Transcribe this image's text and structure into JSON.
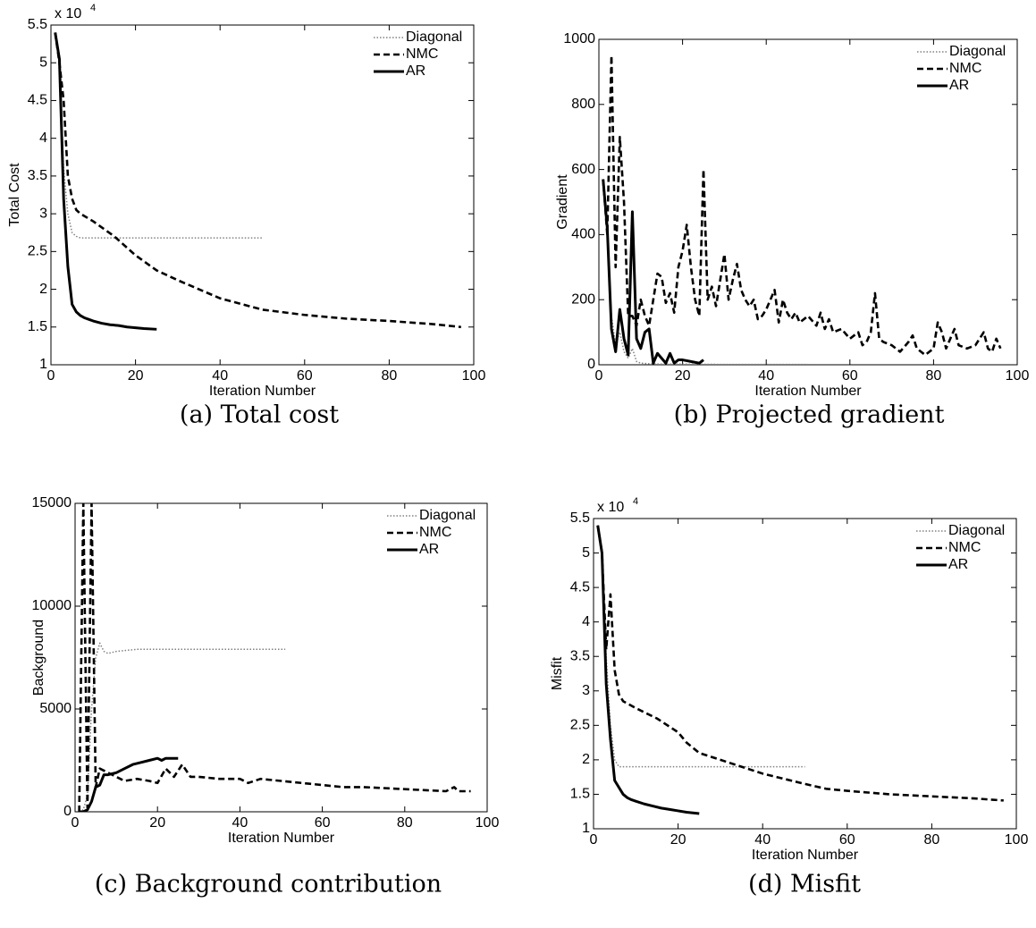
{
  "chart_data": [
    {
      "type": "line",
      "caption": "(a) Total cost",
      "xlabel": "Iteration Number",
      "ylabel": "Total Cost",
      "y_multiplier": "x 10",
      "y_multiplier_exponent": "4",
      "xlim": [
        0,
        100
      ],
      "xticks": [
        0,
        20,
        40,
        60,
        80,
        100
      ],
      "ylim": [
        1,
        5.5
      ],
      "yticks": [
        1,
        1.5,
        2,
        2.5,
        3,
        3.5,
        4,
        4.5,
        5,
        5.5
      ],
      "series": [
        {
          "name": "Diagonal",
          "color": "#808080",
          "style": "dotted",
          "x": [
            1,
            2,
            3,
            4,
            5,
            6,
            7,
            8,
            10,
            50
          ],
          "values": [
            5.4,
            5.0,
            3.6,
            3.0,
            2.75,
            2.7,
            2.68,
            2.68,
            2.68,
            2.68
          ]
        },
        {
          "name": "NMC",
          "color": "#000000",
          "style": "dashed",
          "x": [
            1,
            2,
            3,
            4,
            5,
            6,
            7,
            10,
            15,
            20,
            25,
            30,
            35,
            40,
            50,
            60,
            70,
            80,
            90,
            97
          ],
          "values": [
            5.4,
            5.0,
            4.5,
            3.5,
            3.2,
            3.05,
            3.0,
            2.9,
            2.7,
            2.45,
            2.25,
            2.12,
            2.0,
            1.88,
            1.73,
            1.66,
            1.61,
            1.58,
            1.54,
            1.5
          ]
        },
        {
          "name": "AR",
          "color": "#000000",
          "style": "solid",
          "x": [
            1,
            2,
            3,
            4,
            5,
            6,
            7,
            8,
            9,
            10,
            12,
            14,
            16,
            18,
            20,
            22,
            25
          ],
          "values": [
            5.4,
            5.05,
            3.2,
            2.3,
            1.8,
            1.7,
            1.65,
            1.62,
            1.6,
            1.58,
            1.55,
            1.53,
            1.52,
            1.5,
            1.49,
            1.48,
            1.47
          ]
        }
      ]
    },
    {
      "type": "line",
      "caption": "(b) Projected gradient",
      "xlabel": "Iteration Number",
      "ylabel": "Gradient",
      "xlim": [
        0,
        100
      ],
      "xticks": [
        0,
        20,
        40,
        60,
        80,
        100
      ],
      "ylim": [
        0,
        1000
      ],
      "yticks": [
        0,
        200,
        400,
        600,
        800,
        1000
      ],
      "series": [
        {
          "name": "Diagonal",
          "color": "#808080",
          "style": "dotted",
          "x": [
            1,
            2,
            3,
            4,
            5,
            6,
            7,
            8,
            9,
            10,
            12,
            15,
            20,
            30,
            50
          ],
          "values": [
            570,
            430,
            150,
            60,
            100,
            40,
            20,
            50,
            10,
            5,
            3,
            2,
            2,
            1,
            1
          ]
        },
        {
          "name": "NMC",
          "color": "#000000",
          "style": "dashed",
          "x": [
            1,
            2,
            3,
            4,
            5,
            6,
            7,
            8,
            9,
            10,
            11,
            12,
            13,
            14,
            15,
            16,
            17,
            18,
            19,
            20,
            21,
            22,
            23,
            24,
            25,
            26,
            27,
            28,
            29,
            30,
            31,
            32,
            33,
            34,
            35,
            36,
            37,
            38,
            39,
            40,
            42,
            43,
            44,
            45,
            46,
            47,
            48,
            50,
            52,
            53,
            54,
            55,
            56,
            58,
            60,
            62,
            63,
            64,
            65,
            66,
            67,
            68,
            70,
            72,
            74,
            75,
            76,
            78,
            80,
            81,
            82,
            83,
            85,
            86,
            88,
            90,
            92,
            93,
            94,
            95,
            96
          ],
          "values": [
            570,
            400,
            950,
            300,
            700,
            500,
            150,
            150,
            120,
            200,
            150,
            120,
            200,
            280,
            270,
            190,
            220,
            160,
            300,
            350,
            430,
            300,
            200,
            150,
            600,
            200,
            240,
            180,
            260,
            340,
            200,
            260,
            310,
            230,
            200,
            180,
            200,
            140,
            150,
            170,
            230,
            130,
            200,
            160,
            140,
            160,
            130,
            150,
            120,
            160,
            110,
            140,
            100,
            110,
            80,
            100,
            60,
            70,
            100,
            220,
            80,
            70,
            60,
            40,
            70,
            90,
            50,
            30,
            50,
            130,
            100,
            50,
            110,
            60,
            50,
            60,
            100,
            50,
            40,
            80,
            50
          ]
        },
        {
          "name": "AR",
          "color": "#000000",
          "style": "solid",
          "x": [
            1,
            2,
            3,
            4,
            5,
            6,
            7,
            8,
            9,
            10,
            11,
            12,
            13,
            14,
            15,
            16,
            17,
            18,
            19,
            20,
            22,
            24,
            25
          ],
          "values": [
            570,
            420,
            110,
            40,
            170,
            80,
            30,
            470,
            80,
            50,
            100,
            110,
            5,
            35,
            20,
            5,
            35,
            5,
            15,
            15,
            10,
            5,
            15
          ]
        }
      ]
    },
    {
      "type": "line",
      "caption": "(c) Background contribution",
      "xlabel": "Iteration Number",
      "ylabel": "Background",
      "xlim": [
        0,
        100
      ],
      "xticks": [
        0,
        20,
        40,
        60,
        80,
        100
      ],
      "ylim": [
        0,
        15000
      ],
      "yticks": [
        0,
        5000,
        10000,
        15000
      ],
      "series": [
        {
          "name": "Diagonal",
          "color": "#808080",
          "style": "dotted",
          "x": [
            1,
            2,
            3,
            4,
            5,
            6,
            7,
            8,
            10,
            15,
            20,
            30,
            40,
            51
          ],
          "values": [
            0,
            100,
            800,
            5000,
            7500,
            8200,
            7800,
            7700,
            7800,
            7900,
            7900,
            7900,
            7900,
            7900
          ]
        },
        {
          "name": "NMC",
          "color": "#000000",
          "style": "dashed",
          "x": [
            1,
            2,
            3,
            4,
            5,
            6,
            8,
            10,
            12,
            15,
            18,
            20,
            22,
            24,
            26,
            28,
            30,
            35,
            40,
            42,
            45,
            50,
            55,
            60,
            65,
            70,
            80,
            90,
            92,
            93,
            96
          ],
          "values": [
            0,
            15000,
            200,
            15000,
            1200,
            2100,
            1900,
            1700,
            1500,
            1600,
            1500,
            1400,
            2100,
            1700,
            2300,
            1700,
            1700,
            1600,
            1600,
            1400,
            1600,
            1500,
            1400,
            1300,
            1200,
            1200,
            1100,
            1000,
            1200,
            1000,
            1000
          ]
        },
        {
          "name": "AR",
          "color": "#000000",
          "style": "solid",
          "x": [
            1,
            2,
            3,
            4,
            5,
            6,
            7,
            8,
            10,
            12,
            14,
            16,
            18,
            20,
            21,
            22,
            24,
            25
          ],
          "values": [
            0,
            0,
            100,
            500,
            1200,
            1300,
            1800,
            1800,
            1900,
            2100,
            2300,
            2400,
            2500,
            2600,
            2500,
            2600,
            2600,
            2600
          ]
        }
      ]
    },
    {
      "type": "line",
      "caption": "(d) Misfit",
      "xlabel": "Iteration Number",
      "ylabel": "Misfit",
      "y_multiplier": "x 10",
      "y_multiplier_exponent": "4",
      "xlim": [
        0,
        100
      ],
      "xticks": [
        0,
        20,
        40,
        60,
        80,
        100
      ],
      "ylim": [
        1,
        5.5
      ],
      "yticks": [
        1,
        1.5,
        2,
        2.5,
        3,
        3.5,
        4,
        4.5,
        5,
        5.5
      ],
      "series": [
        {
          "name": "Diagonal",
          "color": "#808080",
          "style": "dotted",
          "x": [
            1,
            2,
            3,
            4,
            5,
            6,
            8,
            10,
            50
          ],
          "values": [
            5.4,
            5.0,
            3.5,
            2.5,
            2.0,
            1.9,
            1.9,
            1.9,
            1.9
          ]
        },
        {
          "name": "NMC",
          "color": "#000000",
          "style": "dashed",
          "x": [
            1,
            2,
            3,
            4,
            5,
            6,
            7,
            10,
            15,
            20,
            22,
            25,
            30,
            35,
            40,
            50,
            55,
            60,
            70,
            80,
            90,
            97
          ],
          "values": [
            5.4,
            5.0,
            3.6,
            4.4,
            3.3,
            2.95,
            2.85,
            2.75,
            2.6,
            2.4,
            2.25,
            2.1,
            2.0,
            1.9,
            1.8,
            1.65,
            1.58,
            1.55,
            1.5,
            1.47,
            1.44,
            1.41
          ]
        },
        {
          "name": "AR",
          "color": "#000000",
          "style": "solid",
          "x": [
            1,
            2,
            3,
            4,
            5,
            6,
            7,
            8,
            9,
            10,
            12,
            14,
            16,
            18,
            20,
            22,
            25
          ],
          "values": [
            5.4,
            5.0,
            3.1,
            2.3,
            1.7,
            1.6,
            1.5,
            1.45,
            1.42,
            1.4,
            1.36,
            1.33,
            1.3,
            1.28,
            1.26,
            1.24,
            1.22
          ]
        }
      ]
    }
  ]
}
